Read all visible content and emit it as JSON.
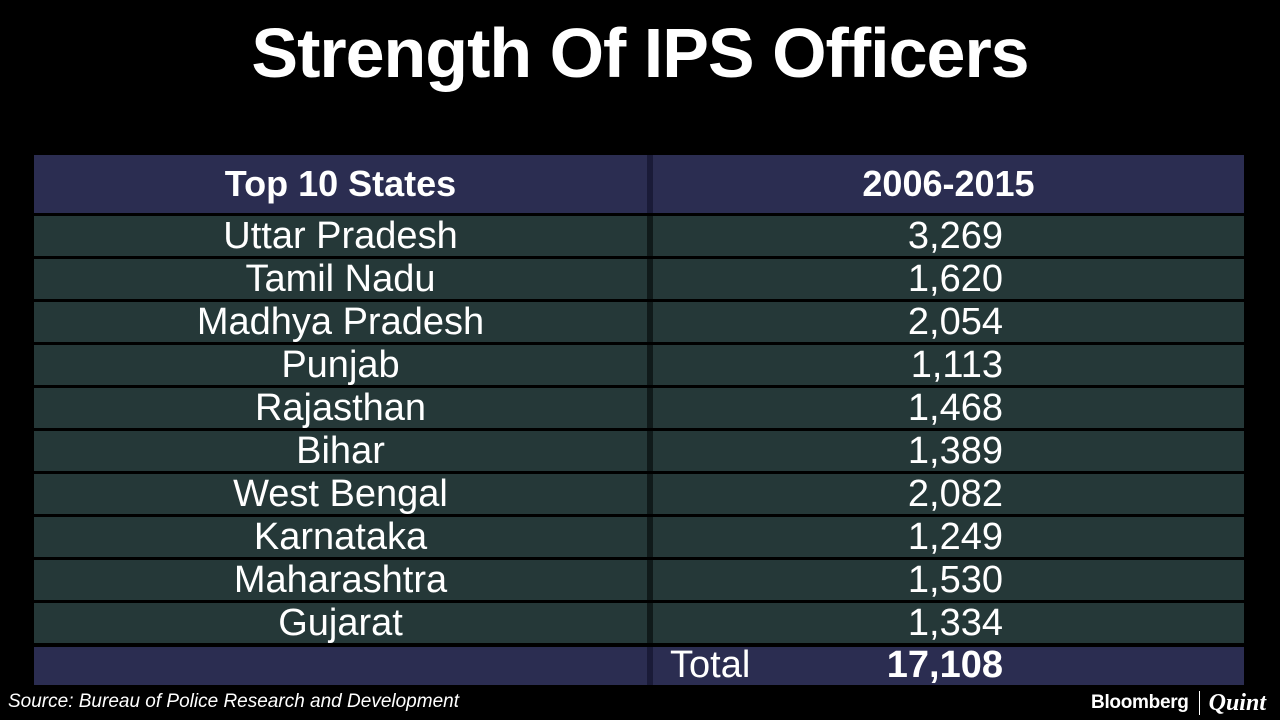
{
  "title": "Strength Of IPS Officers",
  "chart_data": {
    "type": "table",
    "columns": [
      "Top 10 States",
      "2006-2015"
    ],
    "rows": [
      {
        "state": "Uttar Pradesh",
        "value": "3,269"
      },
      {
        "state": "Tamil Nadu",
        "value": "1,620"
      },
      {
        "state": "Madhya Pradesh",
        "value": "2,054"
      },
      {
        "state": "Punjab",
        "value": "1,113"
      },
      {
        "state": "Rajasthan",
        "value": "1,468"
      },
      {
        "state": "Bihar",
        "value": "1,389"
      },
      {
        "state": "West Bengal",
        "value": "2,082"
      },
      {
        "state": "Karnataka",
        "value": "1,249"
      },
      {
        "state": "Maharashtra",
        "value": "1,530"
      },
      {
        "state": "Gujarat",
        "value": "1,334"
      }
    ],
    "total_label": "Total",
    "total_value": "17,108"
  },
  "footer": {
    "source": "Source: Bureau of Police Research and Development",
    "brand_left": "Bloomberg",
    "brand_right": "Quint"
  },
  "colors": {
    "background": "#000000",
    "header_fill": "#2b2d51",
    "row_fill": "#253838",
    "text": "#ffffff"
  }
}
